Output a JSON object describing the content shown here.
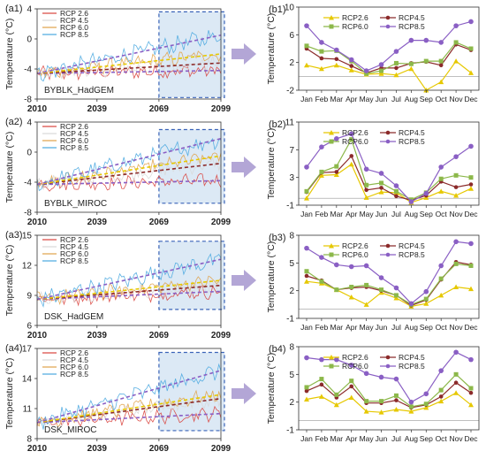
{
  "colors": {
    "rcp26": "#e6c800",
    "rcp45": "#8b2a2a",
    "rcp60": "#8cb84a",
    "rcp85": "#8a5fc4",
    "ts26": "#d9433d",
    "ts45": "#d9d9d9",
    "ts60": "#e0a24a",
    "ts85": "#4aa8e0",
    "arrow": "#b3a6d6",
    "box": "#3a63b8",
    "shade": "#dce9f5"
  },
  "chart_data": [
    {
      "type": "line",
      "label": "(a1)",
      "name": "BYBLK_HadGEM",
      "ylabel": "Temperature (°C)",
      "x": [
        2010,
        2039,
        2069,
        2099
      ],
      "xticks": [
        "2010",
        "2039",
        "2069",
        "2099"
      ],
      "ylim": [
        -8,
        4
      ],
      "yticks": [
        -8,
        -4,
        0,
        4
      ],
      "legend": [
        "RCP 2.6",
        "RCP 4.5",
        "RCP 6.0",
        "RCP 8.5"
      ],
      "legend_position": "top-left",
      "trend_end": [
        -4.2,
        -3.2,
        -2.0,
        0.5
      ],
      "trend_start": -4.6,
      "box_range": [
        2069,
        2099,
        -7.8,
        3.6
      ]
    },
    {
      "type": "line",
      "label": "(a2)",
      "name": "BYBLK_MIROC",
      "ylabel": "Temperature (°C)",
      "x": [
        2010,
        2039,
        2069,
        2099
      ],
      "xticks": [
        "2010",
        "2039",
        "2069",
        "2099"
      ],
      "ylim": [
        -8,
        4
      ],
      "yticks": [
        -8,
        -4,
        0,
        4
      ],
      "legend": [
        "RCP 2.6",
        "RCP 4.5",
        "RCP 6.0",
        "RCP 8.5"
      ],
      "legend_position": "top-left",
      "trend_end": [
        -3.8,
        -1.5,
        -0.5,
        1.8
      ],
      "trend_start": -4.3,
      "box_range": [
        2069,
        2099,
        -6.8,
        3.0
      ]
    },
    {
      "type": "line",
      "label": "(a3)",
      "name": "DSK_HadGEM",
      "ylabel": "Temperature (°C)",
      "x": [
        2010,
        2039,
        2069,
        2099
      ],
      "xticks": [
        "2010",
        "2039",
        "2069",
        "2099"
      ],
      "ylim": [
        6,
        15
      ],
      "yticks": [
        6,
        9,
        12,
        15
      ],
      "legend": [
        "RCP 2.6",
        "RCP 4.5",
        "RCP 6.0",
        "RCP 8.5"
      ],
      "legend_position": "top-left",
      "trend_end": [
        9.4,
        10.0,
        10.5,
        12.6
      ],
      "trend_start": 8.6,
      "box_range": [
        2069,
        2099,
        7.6,
        14.4
      ]
    },
    {
      "type": "line",
      "label": "(a4)",
      "name": "DSK_MIROC",
      "ylabel": "Temperature (°C)",
      "x": [
        2010,
        2039,
        2069,
        2099
      ],
      "xticks": [
        "2010",
        "2039",
        "2069",
        "2099"
      ],
      "ylim": [
        8,
        17
      ],
      "yticks": [
        8,
        11,
        14,
        17
      ],
      "legend": [
        "RCP 2.6",
        "RCP 4.5",
        "RCP 6.0",
        "RCP 8.5"
      ],
      "legend_position": "top-left",
      "trend_end": [
        10.5,
        12.0,
        12.4,
        14.8
      ],
      "trend_start": 9.6,
      "box_range": [
        2069,
        2099,
        8.8,
        16.6
      ]
    },
    {
      "type": "line",
      "label": "(b1)",
      "ylabel": "Temperature (°C)",
      "categories": [
        "Jan",
        "Feb",
        "Mar",
        "Apr",
        "May",
        "Jun",
        "Jul",
        "Aug",
        "Sep",
        "Oct",
        "Nov",
        "Dec"
      ],
      "ylim": [
        -2,
        10
      ],
      "yticks": [
        -2,
        2,
        6,
        10
      ],
      "legend_position": "top",
      "series": [
        {
          "name": "RCP2.6",
          "values": [
            1.6,
            1.1,
            1.6,
            0.9,
            0.3,
            0.4,
            0.2,
            1.1,
            -2.0,
            -0.8,
            2.2,
            0.5
          ]
        },
        {
          "name": "RCP4.5",
          "values": [
            4.0,
            2.6,
            2.5,
            1.5,
            0.5,
            1.2,
            1.2,
            1.9,
            2.1,
            1.6,
            4.6,
            3.8
          ]
        },
        {
          "name": "RCP6.0",
          "values": [
            4.4,
            3.6,
            3.7,
            2.2,
            0.4,
            0.8,
            1.9,
            1.8,
            2.2,
            2.2,
            4.9,
            4.0
          ]
        },
        {
          "name": "RCP8.5",
          "values": [
            7.3,
            4.9,
            3.8,
            2.4,
            0.8,
            1.7,
            3.6,
            5.2,
            5.2,
            4.9,
            7.3,
            7.9
          ]
        }
      ]
    },
    {
      "type": "line",
      "label": "(b2)",
      "ylabel": "Temperature (°C)",
      "categories": [
        "Jan",
        "Feb",
        "Mar",
        "Apr",
        "May",
        "Jun",
        "Jul",
        "Aug",
        "Sep",
        "Oct",
        "Nov",
        "Dec"
      ],
      "ylim": [
        -1,
        11
      ],
      "yticks": [
        -1,
        3,
        7,
        11
      ],
      "legend_position": "top",
      "series": [
        {
          "name": "RCP2.6",
          "values": [
            0.0,
            3.3,
            3.4,
            4.9,
            0.1,
            0.9,
            0.8,
            -0.6,
            0.1,
            1.0,
            0.4,
            1.4
          ]
        },
        {
          "name": "RCP4.5",
          "values": [
            0.9,
            3.7,
            3.8,
            6.1,
            1.2,
            1.5,
            0.3,
            -0.3,
            0.4,
            2.4,
            1.6,
            2.0
          ]
        },
        {
          "name": "RCP6.0",
          "values": [
            1.0,
            3.8,
            4.6,
            8.5,
            1.9,
            2.2,
            1.0,
            -0.2,
            0.8,
            2.8,
            3.3,
            3.0
          ]
        },
        {
          "name": "RCP8.5",
          "values": [
            4.5,
            7.4,
            8.6,
            9.3,
            4.2,
            3.6,
            1.8,
            -0.5,
            0.7,
            4.5,
            6.0,
            7.5
          ]
        }
      ]
    },
    {
      "type": "line",
      "label": "(b3)",
      "ylabel": "Temperature (°C)",
      "categories": [
        "Jan",
        "Feb",
        "Mar",
        "Apr",
        "May",
        "Jun",
        "Jul",
        "Aug",
        "Sep",
        "Oct",
        "Nov",
        "Dec"
      ],
      "ylim": [
        -1,
        8
      ],
      "yticks": [
        -1,
        2,
        5,
        8
      ],
      "legend_position": "top",
      "series": [
        {
          "name": "RCP2.6",
          "values": [
            3.0,
            2.8,
            2.1,
            1.3,
            0.5,
            1.8,
            1.2,
            0.3,
            0.6,
            1.5,
            2.4,
            2.2
          ]
        },
        {
          "name": "RCP4.5",
          "values": [
            3.6,
            3.1,
            2.1,
            2.3,
            2.4,
            2.0,
            1.5,
            0.4,
            1.0,
            3.2,
            5.1,
            4.8
          ]
        },
        {
          "name": "RCP6.0",
          "values": [
            4.1,
            3.0,
            2.1,
            2.4,
            2.6,
            2.1,
            1.5,
            0.5,
            1.1,
            3.3,
            4.9,
            4.7
          ]
        },
        {
          "name": "RCP8.5",
          "values": [
            6.6,
            5.6,
            4.8,
            4.6,
            4.7,
            3.4,
            2.3,
            0.6,
            1.9,
            4.7,
            7.3,
            7.1
          ]
        }
      ]
    },
    {
      "type": "line",
      "label": "(b4)",
      "ylabel": "Temperature (°C)",
      "categories": [
        "Jan",
        "Feb",
        "Mar",
        "Apr",
        "May",
        "Jun",
        "Jul",
        "Aug",
        "Sep",
        "Oct",
        "Nov",
        "Dec"
      ],
      "ylim": [
        -1,
        8
      ],
      "yticks": [
        -1,
        2,
        5,
        8
      ],
      "legend_position": "top",
      "series": [
        {
          "name": "RCP2.6",
          "values": [
            2.3,
            2.6,
            1.7,
            2.5,
            1.0,
            0.9,
            1.2,
            1.0,
            1.4,
            2.1,
            3.0,
            1.7
          ]
        },
        {
          "name": "RCP4.5",
          "values": [
            3.2,
            3.9,
            2.5,
            3.7,
            1.9,
            1.9,
            2.2,
            1.4,
            1.7,
            2.6,
            4.1,
            3.0
          ]
        },
        {
          "name": "RCP6.0",
          "values": [
            3.6,
            4.5,
            2.8,
            4.3,
            2.1,
            2.1,
            2.7,
            1.5,
            1.8,
            3.3,
            5.0,
            3.5
          ]
        },
        {
          "name": "RCP8.5",
          "values": [
            6.8,
            6.6,
            6.6,
            6.0,
            5.1,
            4.7,
            4.5,
            2.0,
            2.9,
            5.4,
            7.4,
            6.6
          ]
        }
      ]
    }
  ]
}
